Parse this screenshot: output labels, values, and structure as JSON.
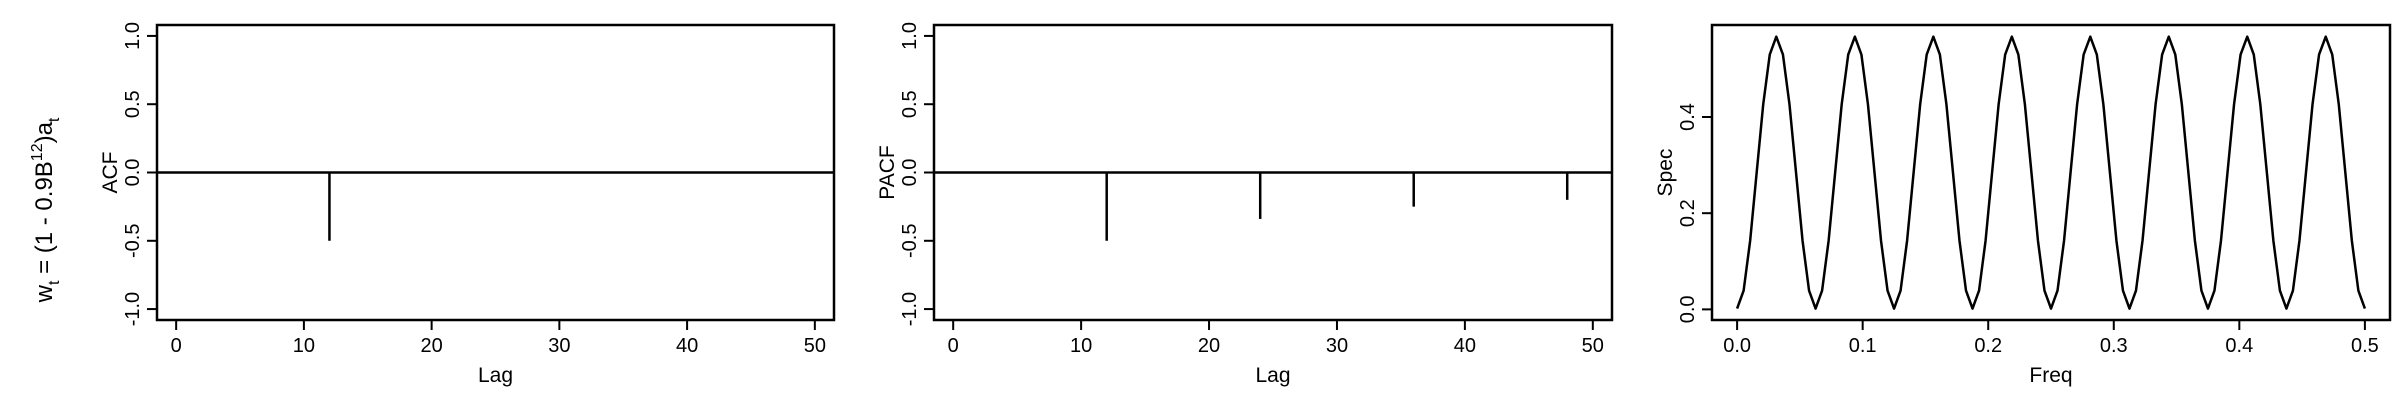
{
  "row_label": {
    "main": "w",
    "sub1": "t",
    "eq": " = (1 - 0.9B",
    "sup": "12",
    "tail": ")a",
    "sub2": "t"
  },
  "chart_data": [
    {
      "type": "bar",
      "subtype": "acf-spikes",
      "xlabel": "Lag",
      "ylabel": "ACF",
      "xlim": [
        0,
        51
      ],
      "ylim": [
        -1,
        1
      ],
      "xticks": [
        0,
        10,
        20,
        30,
        40,
        50
      ],
      "xtick_labels": [
        "0",
        "10",
        "20",
        "30",
        "40",
        "50"
      ],
      "yticks": [
        -1.0,
        -0.5,
        0.0,
        0.5,
        1.0
      ],
      "ytick_labels": [
        "-1.0",
        "-0.5",
        "0.0",
        "0.5",
        "1.0"
      ],
      "baseline": 0,
      "x": [
        12
      ],
      "values": [
        -0.5
      ],
      "grid": false
    },
    {
      "type": "bar",
      "subtype": "pacf-spikes",
      "xlabel": "Lag",
      "ylabel": "PACF",
      "xlim": [
        0,
        51
      ],
      "ylim": [
        -1,
        1
      ],
      "xticks": [
        0,
        10,
        20,
        30,
        40,
        50
      ],
      "xtick_labels": [
        "0",
        "10",
        "20",
        "30",
        "40",
        "50"
      ],
      "yticks": [
        -1.0,
        -0.5,
        0.0,
        0.5,
        1.0
      ],
      "ytick_labels": [
        "-1.0",
        "-0.5",
        "0.0",
        "0.5",
        "1.0"
      ],
      "baseline": 0,
      "x": [
        12,
        24,
        36,
        48
      ],
      "values": [
        -0.5,
        -0.34,
        -0.25,
        -0.2
      ],
      "grid": false
    },
    {
      "type": "line",
      "xlabel": "Freq",
      "ylabel": "Spec",
      "xlim": [
        0,
        0.5
      ],
      "ylim": [
        0,
        0.5526
      ],
      "xticks": [
        0.0,
        0.1,
        0.2,
        0.3,
        0.4,
        0.5
      ],
      "xtick_labels": [
        "0.0",
        "0.1",
        "0.2",
        "0.3",
        "0.4",
        "0.5"
      ],
      "yticks": [
        0.0,
        0.2,
        0.4
      ],
      "ytick_labels": [
        "0.0",
        "0.2",
        "0.4"
      ],
      "series": [
        {
          "x": [
            0.0,
            0.0052,
            0.0104,
            0.0156,
            0.0208,
            0.026,
            0.0312,
            0.0365,
            0.0417,
            0.0469,
            0.0521,
            0.0573,
            0.0625,
            0.0677,
            0.0729,
            0.0781,
            0.0833,
            0.0885,
            0.0938,
            0.099,
            0.1042,
            0.1094,
            0.1146,
            0.1198,
            0.125,
            0.1302,
            0.1354,
            0.1406,
            0.1458,
            0.151,
            0.1563,
            0.1615,
            0.1667,
            0.1719,
            0.1771,
            0.1823,
            0.1875,
            0.1927,
            0.1979,
            0.2031,
            0.2083,
            0.2135,
            0.2188,
            0.224,
            0.2292,
            0.2344,
            0.2396,
            0.2448,
            0.25,
            0.2552,
            0.2604,
            0.2656,
            0.2708,
            0.276,
            0.2813,
            0.2865,
            0.2917,
            0.2969,
            0.3021,
            0.3073,
            0.3125,
            0.3177,
            0.3229,
            0.3281,
            0.3333,
            0.3385,
            0.3438,
            0.349,
            0.3542,
            0.3594,
            0.3646,
            0.3698,
            0.375,
            0.3802,
            0.3854,
            0.3906,
            0.3958,
            0.401,
            0.4063,
            0.4115,
            0.4167,
            0.4219,
            0.4271,
            0.4323,
            0.4375,
            0.4427,
            0.4479,
            0.4531,
            0.4583,
            0.4635,
            0.4688,
            0.474,
            0.4792,
            0.4844,
            0.4896,
            0.4948,
            0.5
          ],
          "values": [
            0.0016,
            0.0392,
            0.1431,
            0.2851,
            0.4265,
            0.5298,
            0.5671,
            0.5298,
            0.4265,
            0.2851,
            0.1431,
            0.0392,
            0.0016,
            0.0392,
            0.1431,
            0.2851,
            0.4265,
            0.5298,
            0.5671,
            0.5298,
            0.4265,
            0.2851,
            0.1431,
            0.0392,
            0.0016,
            0.0392,
            0.1431,
            0.2851,
            0.4265,
            0.5298,
            0.5671,
            0.5298,
            0.4265,
            0.2851,
            0.1431,
            0.0392,
            0.0016,
            0.0392,
            0.1431,
            0.2851,
            0.4265,
            0.5298,
            0.5671,
            0.5298,
            0.4265,
            0.2851,
            0.1431,
            0.0392,
            0.0016,
            0.0392,
            0.1431,
            0.2851,
            0.4265,
            0.5298,
            0.5671,
            0.5298,
            0.4265,
            0.2851,
            0.1431,
            0.0392,
            0.0016,
            0.0392,
            0.1431,
            0.2851,
            0.4265,
            0.5298,
            0.5671,
            0.5298,
            0.4265,
            0.2851,
            0.1431,
            0.0392,
            0.0016,
            0.0392,
            0.1431,
            0.2851,
            0.4265,
            0.5298,
            0.5671,
            0.5298,
            0.4265,
            0.2851,
            0.1431,
            0.0392,
            0.0016,
            0.0392,
            0.1431,
            0.2851,
            0.4265,
            0.5298,
            0.5671,
            0.5298,
            0.4265,
            0.2851,
            0.1431,
            0.0392,
            0.0016
          ]
        }
      ],
      "grid": false
    }
  ]
}
